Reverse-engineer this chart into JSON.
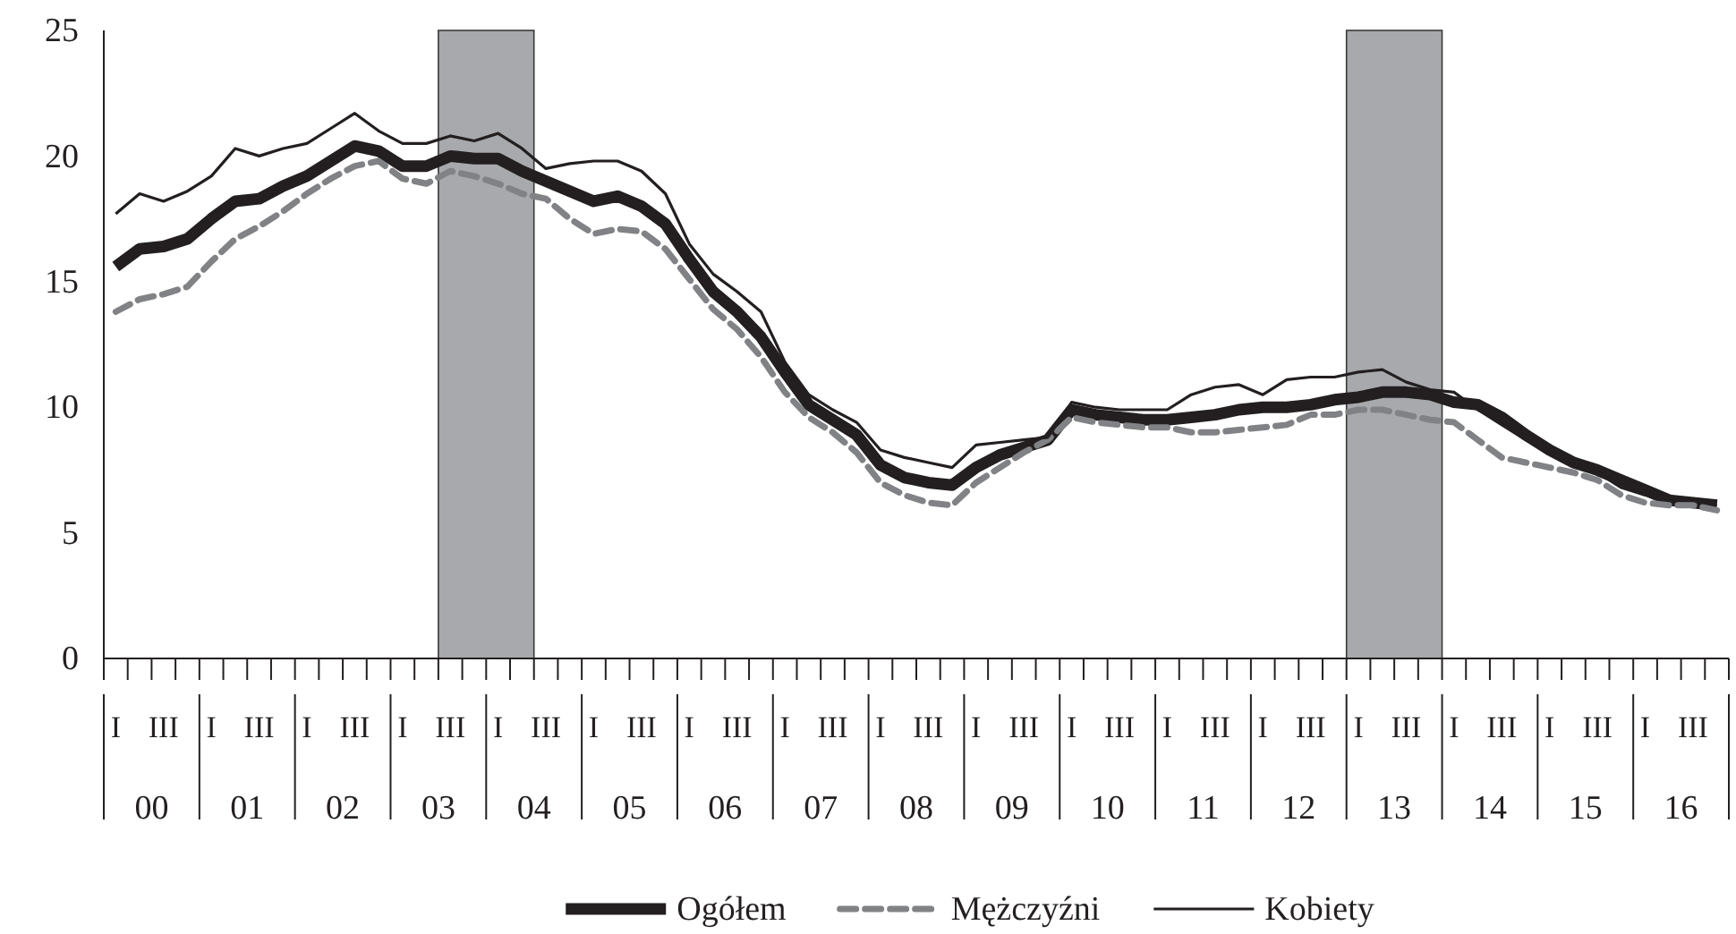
{
  "chart_data": {
    "type": "line",
    "x": [
      -0.375,
      -0.125,
      0.125,
      0.375,
      0.625,
      0.875,
      1.125,
      1.375,
      1.625,
      1.875,
      2.125,
      2.375,
      2.625,
      2.875,
      3.125,
      3.375,
      3.625,
      3.875,
      4.125,
      4.375,
      4.625,
      4.875,
      5.125,
      5.375,
      5.625,
      5.875,
      6.125,
      6.375,
      6.625,
      6.875,
      7.125,
      7.375,
      7.625,
      7.875,
      8.125,
      8.375,
      8.625,
      8.875,
      9.125,
      9.375,
      9.625,
      9.875,
      10.125,
      10.375,
      10.625,
      10.875,
      11.125,
      11.375,
      11.625,
      11.875,
      12.125,
      12.375,
      12.625,
      12.875,
      13.125,
      13.375,
      13.625,
      13.875,
      14.125,
      14.375,
      14.625,
      14.875,
      15.125,
      15.375,
      15.625,
      15.875,
      16.125,
      16.375
    ],
    "series": [
      {
        "name": "Ogółem",
        "color": "#231f20",
        "line_style": "solid",
        "values": [
          15.6,
          16.3,
          16.4,
          16.7,
          17.5,
          18.2,
          18.3,
          18.8,
          19.2,
          19.8,
          20.4,
          20.2,
          19.6,
          19.6,
          20.0,
          19.9,
          19.9,
          19.4,
          19.0,
          18.6,
          18.2,
          18.4,
          18.0,
          17.3,
          15.9,
          14.6,
          13.8,
          12.8,
          11.4,
          10.1,
          9.5,
          8.9,
          7.7,
          7.2,
          7.0,
          6.9,
          7.6,
          8.1,
          8.4,
          8.7,
          9.9,
          9.7,
          9.6,
          9.5,
          9.5,
          9.6,
          9.7,
          9.9,
          10.0,
          10.0,
          10.1,
          10.3,
          10.4,
          10.6,
          10.6,
          10.5,
          10.2,
          10.1,
          9.6,
          8.9,
          8.3,
          7.8,
          7.5,
          7.1,
          6.7,
          6.3,
          6.2,
          6.1
        ]
      },
      {
        "name": "Mężczyźni",
        "color": "#808285",
        "line_style": "dashed",
        "values": [
          13.8,
          14.3,
          14.5,
          14.8,
          15.8,
          16.7,
          17.2,
          17.8,
          18.5,
          19.1,
          19.6,
          19.8,
          19.1,
          18.9,
          19.4,
          19.2,
          18.9,
          18.5,
          18.3,
          17.5,
          16.9,
          17.1,
          17.0,
          16.3,
          15.1,
          13.9,
          13.1,
          12.0,
          10.6,
          9.6,
          9.0,
          8.2,
          7.0,
          6.5,
          6.2,
          6.1,
          7.0,
          7.6,
          8.2,
          8.7,
          9.6,
          9.4,
          9.3,
          9.2,
          9.2,
          9.0,
          9.0,
          9.1,
          9.2,
          9.3,
          9.7,
          9.7,
          9.9,
          9.9,
          9.7,
          9.5,
          9.4,
          8.7,
          8.0,
          7.8,
          7.6,
          7.4,
          7.1,
          6.5,
          6.2,
          6.1,
          6.1,
          5.9
        ]
      },
      {
        "name": "Kobiety",
        "color": "#231f20",
        "line_style": "solid",
        "values": [
          17.7,
          18.5,
          18.2,
          18.6,
          19.2,
          20.3,
          20.0,
          20.3,
          20.5,
          21.1,
          21.7,
          21.0,
          20.5,
          20.5,
          20.8,
          20.6,
          20.9,
          20.3,
          19.5,
          19.7,
          19.8,
          19.8,
          19.4,
          18.5,
          16.5,
          15.3,
          14.6,
          13.8,
          11.8,
          10.5,
          9.9,
          9.4,
          8.3,
          8.0,
          7.8,
          7.6,
          8.5,
          8.6,
          8.7,
          8.8,
          10.2,
          10.0,
          9.9,
          9.9,
          9.9,
          10.5,
          10.8,
          10.9,
          10.5,
          11.1,
          11.2,
          11.2,
          11.4,
          11.5,
          11.0,
          10.7,
          10.6,
          9.9,
          9.3,
          8.7,
          8.2,
          7.7,
          7.4,
          6.8,
          6.5,
          6.4,
          6.3,
          6.1
        ]
      }
    ],
    "xlim": [
      -0.5,
      16.5
    ],
    "xticks": [
      {
        "value": -0.5,
        "label": null
      },
      {
        "value": -0.25,
        "label": null
      },
      {
        "value": 0,
        "label": "00"
      },
      {
        "value": 0.25,
        "label": null
      },
      {
        "value": 0.5,
        "label": null
      },
      {
        "value": 0.75,
        "label": null
      },
      {
        "value": 1,
        "label": "01"
      },
      {
        "value": 1.25,
        "label": null
      },
      {
        "value": 1.5,
        "label": null
      },
      {
        "value": 1.75,
        "label": null
      },
      {
        "value": 2,
        "label": "02"
      },
      {
        "value": 2.25,
        "label": null
      },
      {
        "value": 2.5,
        "label": null
      },
      {
        "value": 2.75,
        "label": null
      },
      {
        "value": 3,
        "label": "03"
      },
      {
        "value": 3.25,
        "label": null
      },
      {
        "value": 3.5,
        "label": null
      },
      {
        "value": 3.75,
        "label": null
      },
      {
        "value": 4,
        "label": "04"
      },
      {
        "value": 4.25,
        "label": null
      },
      {
        "value": 4.5,
        "label": null
      },
      {
        "value": 4.75,
        "label": null
      },
      {
        "value": 5,
        "label": "05"
      },
      {
        "value": 5.25,
        "label": null
      },
      {
        "value": 5.5,
        "label": null
      },
      {
        "value": 5.75,
        "label": null
      },
      {
        "value": 6,
        "label": "06"
      },
      {
        "value": 6.25,
        "label": null
      },
      {
        "value": 6.5,
        "label": null
      },
      {
        "value": 6.75,
        "label": null
      },
      {
        "value": 7,
        "label": "07"
      },
      {
        "value": 7.25,
        "label": null
      },
      {
        "value": 7.5,
        "label": null
      },
      {
        "value": 7.75,
        "label": null
      },
      {
        "value": 8,
        "label": "08"
      },
      {
        "value": 8.25,
        "label": null
      },
      {
        "value": 8.5,
        "label": null
      },
      {
        "value": 8.75,
        "label": null
      },
      {
        "value": 9,
        "label": "09"
      },
      {
        "value": 9.25,
        "label": null
      },
      {
        "value": 9.5,
        "label": null
      },
      {
        "value": 9.75,
        "label": null
      },
      {
        "value": 10,
        "label": "10"
      },
      {
        "value": 10.25,
        "label": null
      },
      {
        "value": 10.5,
        "label": null
      },
      {
        "value": 10.75,
        "label": null
      },
      {
        "value": 11,
        "label": "11"
      },
      {
        "value": 11.25,
        "label": null
      },
      {
        "value": 11.5,
        "label": null
      },
      {
        "value": 11.75,
        "label": null
      },
      {
        "value": 12,
        "label": "12"
      },
      {
        "value": 12.25,
        "label": null
      },
      {
        "value": 12.5,
        "label": null
      },
      {
        "value": 12.75,
        "label": null
      },
      {
        "value": 13,
        "label": "13"
      },
      {
        "value": 13.25,
        "label": null
      },
      {
        "value": 13.5,
        "label": null
      },
      {
        "value": 13.75,
        "label": null
      },
      {
        "value": 14,
        "label": "14"
      },
      {
        "value": 14.25,
        "label": null
      },
      {
        "value": 14.5,
        "label": null
      },
      {
        "value": 14.75,
        "label": null
      },
      {
        "value": 15,
        "label": "15"
      },
      {
        "value": 15.25,
        "label": null
      },
      {
        "value": 15.5,
        "label": null
      },
      {
        "value": 15.75,
        "label": null
      },
      {
        "value": 16,
        "label": "16"
      },
      {
        "value": 16.25,
        "label": null
      },
      {
        "value": 16.5,
        "label": null
      }
    ],
    "annotations": [
      "I",
      "III",
      "I",
      "III",
      "I",
      "III",
      "I",
      "III",
      "I",
      "III",
      "I",
      "III",
      "I",
      "III",
      "I",
      "III",
      "I",
      "III",
      "I",
      "III",
      "I",
      "III",
      "I",
      "III",
      "I",
      "III",
      "I",
      "III",
      "I",
      "III",
      "I",
      "III",
      "I",
      "III"
    ],
    "ylim": [
      0,
      25
    ],
    "yticks": [
      0,
      5,
      10,
      15,
      20,
      25
    ],
    "bands": [
      {
        "axis": "x",
        "from": 3,
        "to": 4,
        "color": "#a7a9ac"
      },
      {
        "axis": "x",
        "from": 12.5,
        "to": 13.5,
        "color": "#a7a9ac"
      }
    ],
    "legend": "bottom",
    "marker": "none"
  }
}
